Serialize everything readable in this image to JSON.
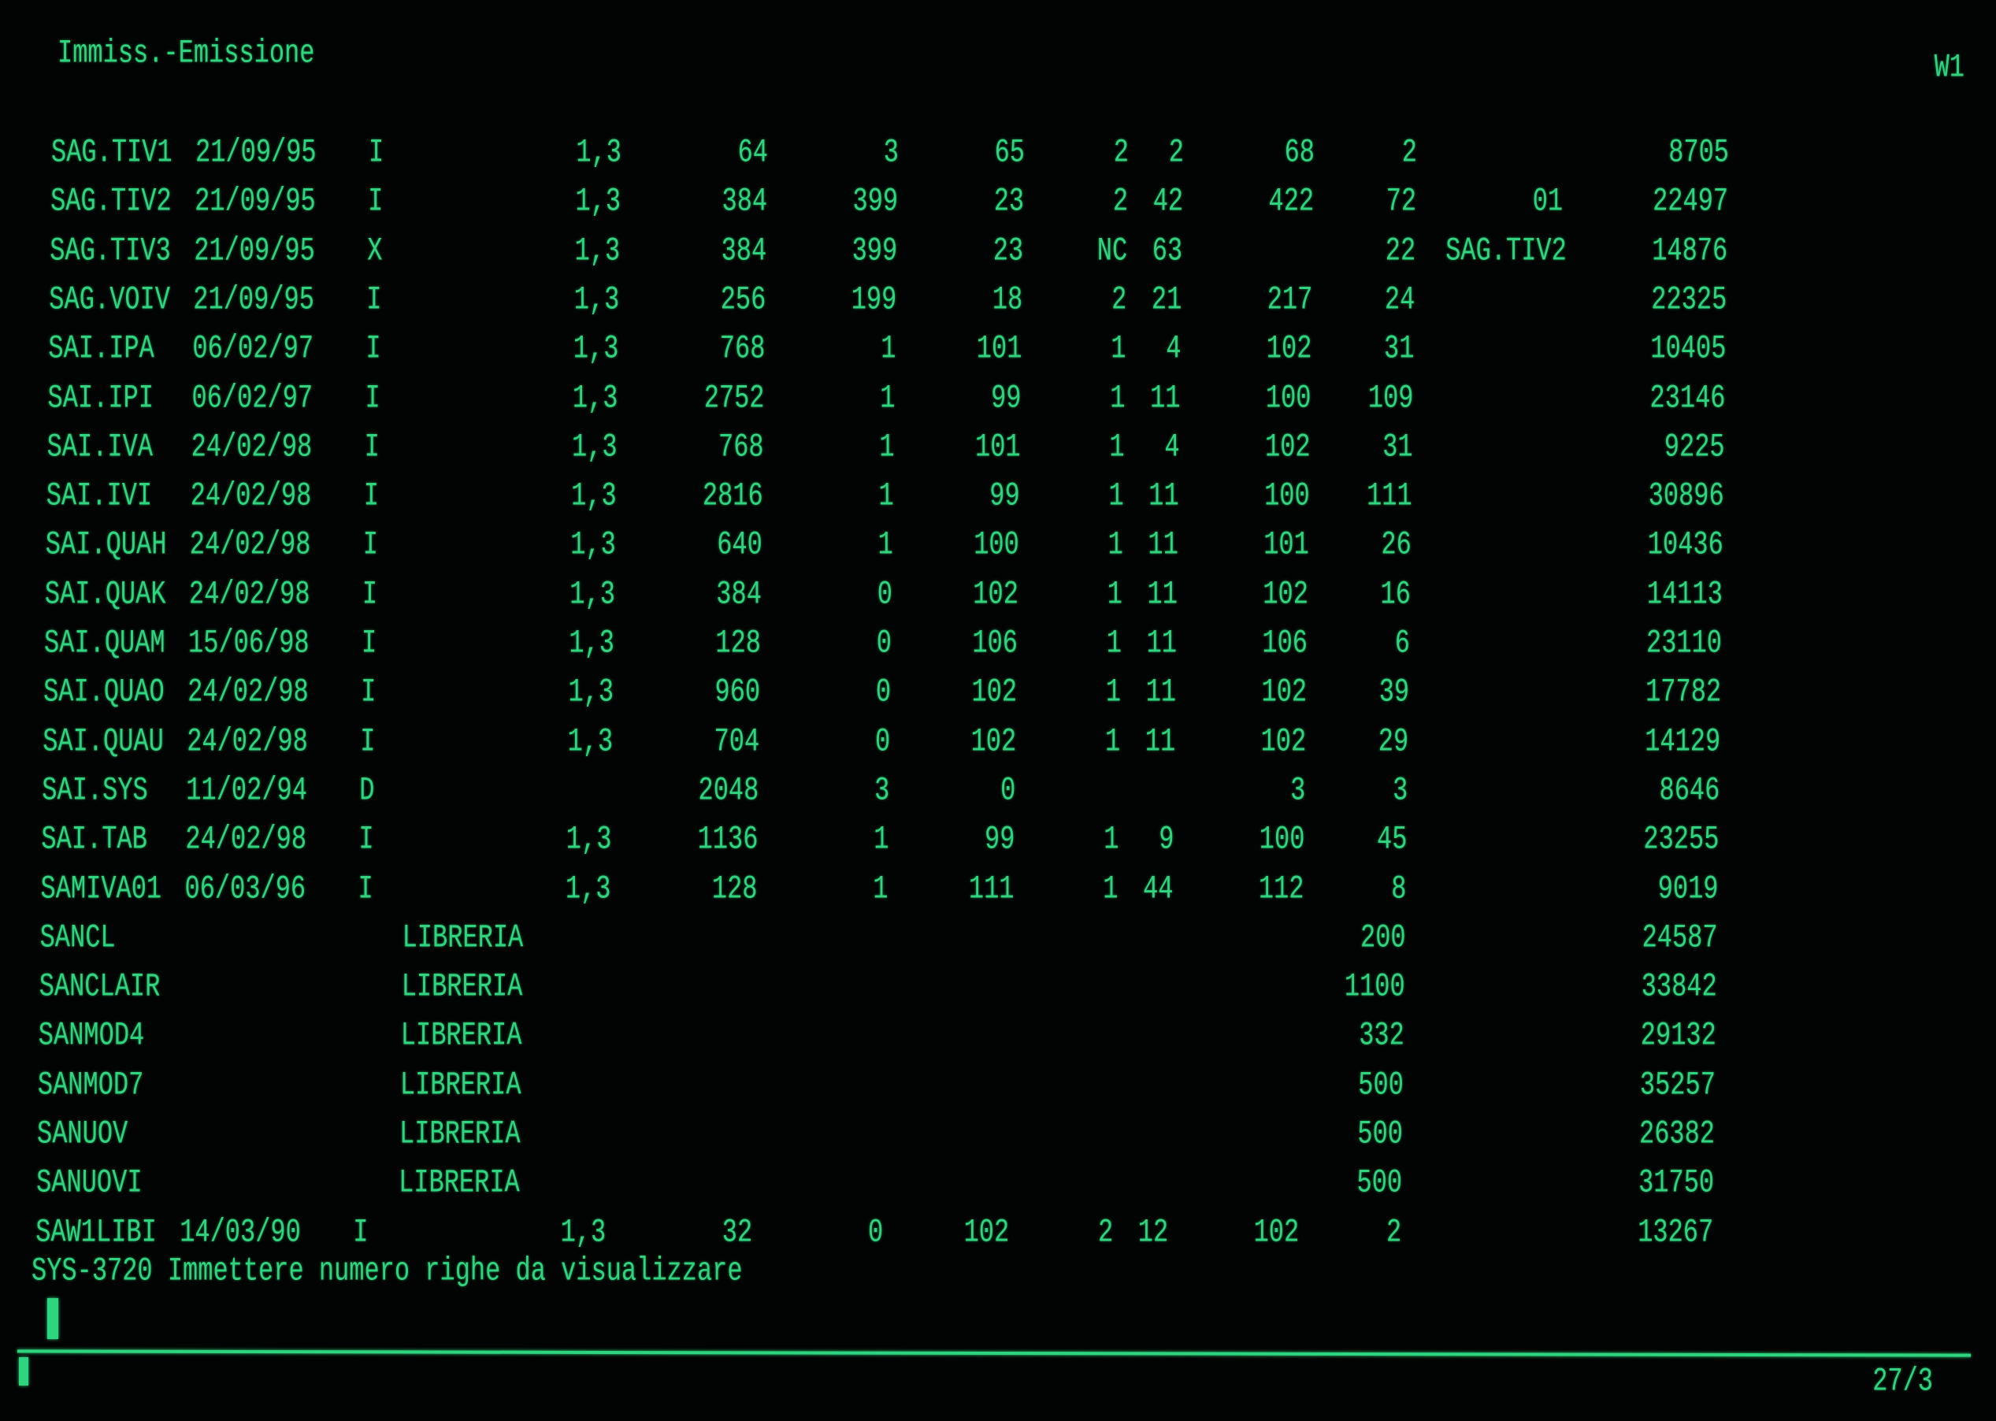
{
  "header": {
    "title": "Immiss.-Emissione",
    "window_id": "W1"
  },
  "rows": [
    [
      "SAG.TIV1",
      "21/09/95",
      "I",
      "",
      "1,3",
      "64",
      "3",
      "65",
      "2",
      "2",
      "68",
      "2",
      "",
      "8705"
    ],
    [
      "SAG.TIV2",
      "21/09/95",
      "I",
      "",
      "1,3",
      "384",
      "399",
      "23",
      "2",
      "42",
      "422",
      "72",
      "01",
      "22497"
    ],
    [
      "SAG.TIV3",
      "21/09/95",
      "X",
      "",
      "1,3",
      "384",
      "399",
      "23",
      "NC",
      "63",
      "",
      "22",
      "SAG.TIV2",
      "14876"
    ],
    [
      "SAG.VOIV",
      "21/09/95",
      "I",
      "",
      "1,3",
      "256",
      "199",
      "18",
      "2",
      "21",
      "217",
      "24",
      "",
      "22325"
    ],
    [
      "SAI.IPA",
      "06/02/97",
      "I",
      "",
      "1,3",
      "768",
      "1",
      "101",
      "1",
      "4",
      "102",
      "31",
      "",
      "10405"
    ],
    [
      "SAI.IPI",
      "06/02/97",
      "I",
      "",
      "1,3",
      "2752",
      "1",
      "99",
      "1",
      "11",
      "100",
      "109",
      "",
      "23146"
    ],
    [
      "SAI.IVA",
      "24/02/98",
      "I",
      "",
      "1,3",
      "768",
      "1",
      "101",
      "1",
      "4",
      "102",
      "31",
      "",
      "9225"
    ],
    [
      "SAI.IVI",
      "24/02/98",
      "I",
      "",
      "1,3",
      "2816",
      "1",
      "99",
      "1",
      "11",
      "100",
      "111",
      "",
      "30896"
    ],
    [
      "SAI.QUAH",
      "24/02/98",
      "I",
      "",
      "1,3",
      "640",
      "1",
      "100",
      "1",
      "11",
      "101",
      "26",
      "",
      "10436"
    ],
    [
      "SAI.QUAK",
      "24/02/98",
      "I",
      "",
      "1,3",
      "384",
      "0",
      "102",
      "1",
      "11",
      "102",
      "16",
      "",
      "14113"
    ],
    [
      "SAI.QUAM",
      "15/06/98",
      "I",
      "",
      "1,3",
      "128",
      "0",
      "106",
      "1",
      "11",
      "106",
      "6",
      "",
      "23110"
    ],
    [
      "SAI.QUAO",
      "24/02/98",
      "I",
      "",
      "1,3",
      "960",
      "0",
      "102",
      "1",
      "11",
      "102",
      "39",
      "",
      "17782"
    ],
    [
      "SAI.QUAU",
      "24/02/98",
      "I",
      "",
      "1,3",
      "704",
      "0",
      "102",
      "1",
      "11",
      "102",
      "29",
      "",
      "14129"
    ],
    [
      "SAI.SYS",
      "11/02/94",
      "D",
      "",
      "",
      "2048",
      "3",
      "0",
      "",
      "",
      "3",
      "3",
      "",
      "8646"
    ],
    [
      "SAI.TAB",
      "24/02/98",
      "I",
      "",
      "1,3",
      "1136",
      "1",
      "99",
      "1",
      "9",
      "100",
      "45",
      "",
      "23255"
    ],
    [
      "SAMIVA01",
      "06/03/96",
      "I",
      "",
      "1,3",
      "128",
      "1",
      "111",
      "1",
      "44",
      "112",
      "8",
      "",
      "9019"
    ],
    [
      "SANCL",
      "",
      "",
      "LIBRERIA",
      "",
      "",
      "",
      "",
      "",
      "",
      "",
      "200",
      "",
      "24587"
    ],
    [
      "SANCLAIR",
      "",
      "",
      "LIBRERIA",
      "",
      "",
      "",
      "",
      "",
      "",
      "",
      "1100",
      "",
      "33842"
    ],
    [
      "SANMOD4",
      "",
      "",
      "LIBRERIA",
      "",
      "",
      "",
      "",
      "",
      "",
      "",
      "332",
      "",
      "29132"
    ],
    [
      "SANMOD7",
      "",
      "",
      "LIBRERIA",
      "",
      "",
      "",
      "",
      "",
      "",
      "",
      "500",
      "",
      "35257"
    ],
    [
      "SANUOV",
      "",
      "",
      "LIBRERIA",
      "",
      "",
      "",
      "",
      "",
      "",
      "",
      "500",
      "",
      "26382"
    ],
    [
      "SANUOVI",
      "",
      "",
      "LIBRERIA",
      "",
      "",
      "",
      "",
      "",
      "",
      "",
      "500",
      "",
      "31750"
    ],
    [
      "SAW1LIBI",
      "14/03/90",
      "I",
      "",
      "1,3",
      "32",
      "0",
      "102",
      "2",
      "12",
      "102",
      "2",
      "",
      "13267"
    ]
  ],
  "message": "SYS-3720 Immettere numero righe da visualizzare",
  "status": {
    "position": "27/3"
  },
  "colors": {
    "phosphor": "#2ed57e",
    "background": "#020403"
  }
}
